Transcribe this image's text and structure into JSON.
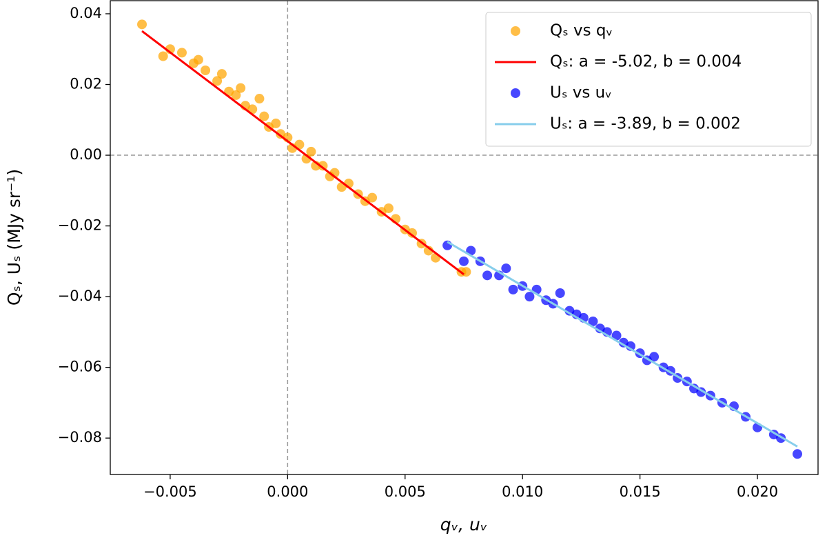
{
  "chart_data": {
    "type": "scatter",
    "xlabel": "qᵥ, uᵥ",
    "ylabel": "Qₛ, Uₛ (MJy sr⁻¹)",
    "xlim": [
      -0.00755,
      0.02258
    ],
    "ylim": [
      -0.0903,
      0.0437
    ],
    "xticks": [
      {
        "value": -0.005,
        "label": "−0.005"
      },
      {
        "value": 0,
        "label": "0.000"
      },
      {
        "value": 0.005,
        "label": "0.005"
      },
      {
        "value": 0.01,
        "label": "0.010"
      },
      {
        "value": 0.015,
        "label": "0.015"
      },
      {
        "value": 0.02,
        "label": "0.020"
      }
    ],
    "yticks": [
      {
        "value": 0.04,
        "label": "0.04"
      },
      {
        "value": 0.02,
        "label": "0.02"
      },
      {
        "value": 0,
        "label": "0.00"
      },
      {
        "value": -0.02,
        "label": "−0.02"
      },
      {
        "value": -0.04,
        "label": "−0.04"
      },
      {
        "value": -0.06,
        "label": "−0.06"
      },
      {
        "value": -0.08,
        "label": "−0.08"
      }
    ],
    "axhline": 0,
    "axvline": 0,
    "legend": "upper right",
    "series": [
      {
        "name": "Qₛ vs qᵥ",
        "mode": "scatter",
        "color": "#ffa500",
        "x": [
          -0.0062,
          -0.0053,
          -0.005,
          -0.0045,
          -0.004,
          -0.0038,
          -0.0035,
          -0.003,
          -0.0028,
          -0.0025,
          -0.0022,
          -0.002,
          -0.0018,
          -0.0015,
          -0.0012,
          -0.001,
          -0.0008,
          -0.0005,
          -0.0003,
          0,
          0.0002,
          0.0005,
          0.0008,
          0.001,
          0.0012,
          0.0015,
          0.0018,
          0.002,
          0.0023,
          0.0026,
          0.003,
          0.0033,
          0.0036,
          0.004,
          0.0043,
          0.0046,
          0.005,
          0.0053,
          0.0057,
          0.006,
          0.0063,
          0.0074,
          0.0076
        ],
        "values": [
          0.037,
          0.028,
          0.03,
          0.029,
          0.026,
          0.027,
          0.024,
          0.021,
          0.023,
          0.018,
          0.017,
          0.019,
          0.014,
          0.013,
          0.016,
          0.011,
          0.008,
          0.009,
          0.006,
          0.005,
          0.002,
          0.003,
          -0.001,
          0.001,
          -0.003,
          -0.003,
          -0.006,
          -0.005,
          -0.009,
          -0.008,
          -0.011,
          -0.013,
          -0.012,
          -0.016,
          -0.015,
          -0.018,
          -0.021,
          -0.022,
          -0.025,
          -0.027,
          -0.029,
          -0.033,
          -0.033
        ]
      },
      {
        "name": "Qₛ: a = -5.02, b = 0.004",
        "mode": "line",
        "color": "#ff0000",
        "x": [
          -0.0062,
          0.0075
        ],
        "values": [
          0.0351,
          -0.0337
        ]
      },
      {
        "name": "Uₛ vs uᵥ",
        "mode": "scatter",
        "color": "#0000ff",
        "x": [
          0.0068,
          0.0075,
          0.0078,
          0.0082,
          0.0085,
          0.009,
          0.0093,
          0.0096,
          0.01,
          0.0103,
          0.0106,
          0.011,
          0.0113,
          0.0116,
          0.012,
          0.0123,
          0.0126,
          0.013,
          0.0133,
          0.0136,
          0.014,
          0.0143,
          0.0146,
          0.015,
          0.0153,
          0.0156,
          0.016,
          0.0163,
          0.0166,
          0.017,
          0.0173,
          0.0176,
          0.018,
          0.0185,
          0.019,
          0.0195,
          0.02,
          0.0207,
          0.021,
          0.0217
        ],
        "values": [
          -0.0255,
          -0.03,
          -0.027,
          -0.03,
          -0.034,
          -0.034,
          -0.032,
          -0.038,
          -0.037,
          -0.04,
          -0.038,
          -0.041,
          -0.042,
          -0.039,
          -0.044,
          -0.045,
          -0.046,
          -0.047,
          -0.049,
          -0.05,
          -0.051,
          -0.053,
          -0.054,
          -0.056,
          -0.058,
          -0.057,
          -0.06,
          -0.061,
          -0.063,
          -0.064,
          -0.066,
          -0.067,
          -0.068,
          -0.07,
          -0.071,
          -0.074,
          -0.077,
          -0.079,
          -0.08,
          -0.0845
        ]
      },
      {
        "name": "Uₛ: a = -3.89, b = 0.002",
        "mode": "line",
        "color": "#87ceeb",
        "x": [
          0.0068,
          0.0217
        ],
        "values": [
          -0.0245,
          -0.0824
        ]
      }
    ]
  }
}
